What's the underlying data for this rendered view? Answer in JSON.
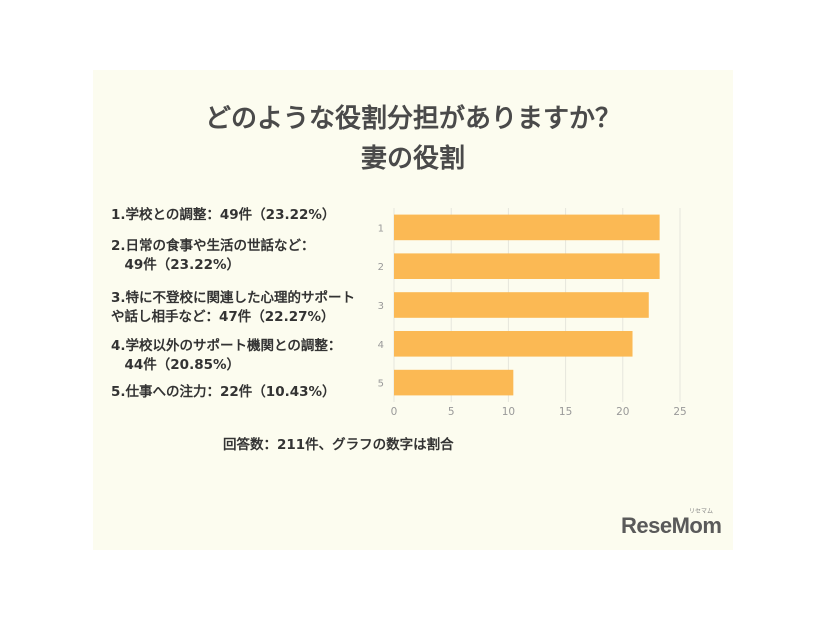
{
  "title_line1": "どのような役割分担がありますか？",
  "title_line2": "妻の役割",
  "legend_items": [
    "1.学校との調整：49件（23.22%）",
    "2.日常の食事や生活の世話など：\n　49件（23.22%）",
    "3.特に不登校に関連した心理的サポート\nや話し相手など：47件（22.27%）",
    "4.学校以外のサポート機関との調整：\n　44件（20.85%）",
    "5.仕事への注力：22件（10.43%）"
  ],
  "note": "回答数：211件、グラフの数字は割合",
  "logo_text": "ReseMom",
  "logo_small": "リセマム",
  "colors": {
    "bar": "#fbb954",
    "panel": "#fcfcef",
    "grid": "#e6e6dc"
  },
  "chart_data": {
    "type": "bar",
    "orientation": "horizontal",
    "categories": [
      "1",
      "2",
      "3",
      "4",
      "5"
    ],
    "values": [
      23.22,
      23.22,
      22.27,
      20.85,
      10.43
    ],
    "xlim": [
      0,
      25
    ],
    "xticks": [
      0,
      5,
      10,
      15,
      20,
      25
    ],
    "grid": true
  }
}
